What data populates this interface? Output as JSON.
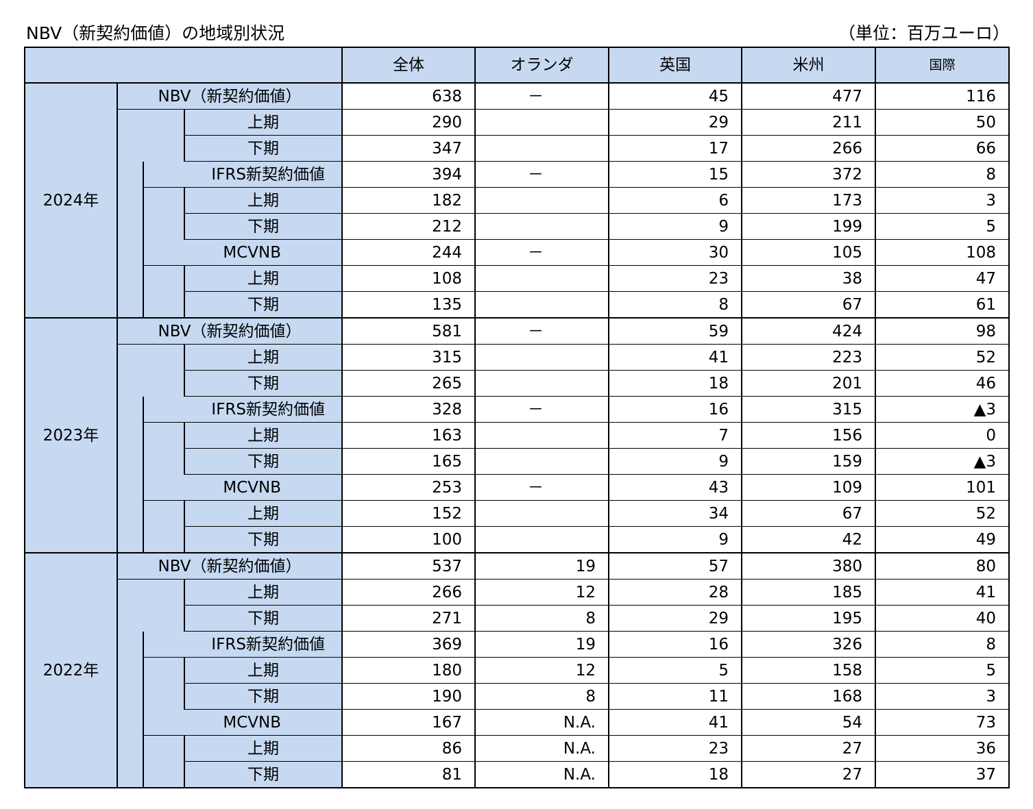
{
  "title": "NBV（新契約価値）の地域別状況",
  "unit": "（単位：百万ユーロ）",
  "columns": [
    "全体",
    "オランダ",
    "英国",
    "米州",
    "国際"
  ],
  "years": [
    {
      "year": "2024年",
      "groups": [
        {
          "label": "NBV（新契約価値）",
          "values": [
            "638",
            "－",
            "45",
            "477",
            "116"
          ],
          "rows": [
            {
              "label": "上期",
              "values": [
                "290",
                "",
                "29",
                "211",
                "50"
              ]
            },
            {
              "label": "下期",
              "values": [
                "347",
                "",
                "17",
                "266",
                "66"
              ]
            }
          ]
        },
        {
          "label": "IFRS新契約価値",
          "values": [
            "394",
            "－",
            "15",
            "372",
            "8"
          ],
          "rows": [
            {
              "label": "上期",
              "values": [
                "182",
                "",
                "6",
                "173",
                "3"
              ]
            },
            {
              "label": "下期",
              "values": [
                "212",
                "",
                "9",
                "199",
                "5"
              ]
            }
          ]
        },
        {
          "label": "MCVNB",
          "values": [
            "244",
            "－",
            "30",
            "105",
            "108"
          ],
          "rows": [
            {
              "label": "上期",
              "values": [
                "108",
                "",
                "23",
                "38",
                "47"
              ]
            },
            {
              "label": "下期",
              "values": [
                "135",
                "",
                "8",
                "67",
                "61"
              ]
            }
          ]
        }
      ]
    },
    {
      "year": "2023年",
      "groups": [
        {
          "label": "NBV（新契約価値）",
          "values": [
            "581",
            "－",
            "59",
            "424",
            "98"
          ],
          "rows": [
            {
              "label": "上期",
              "values": [
                "315",
                "",
                "41",
                "223",
                "52"
              ]
            },
            {
              "label": "下期",
              "values": [
                "265",
                "",
                "18",
                "201",
                "46"
              ]
            }
          ]
        },
        {
          "label": "IFRS新契約価値",
          "values": [
            "328",
            "－",
            "16",
            "315",
            "▲3"
          ],
          "rows": [
            {
              "label": "上期",
              "values": [
                "163",
                "",
                "7",
                "156",
                "0"
              ]
            },
            {
              "label": "下期",
              "values": [
                "165",
                "",
                "9",
                "159",
                "▲3"
              ]
            }
          ]
        },
        {
          "label": "MCVNB",
          "values": [
            "253",
            "－",
            "43",
            "109",
            "101"
          ],
          "rows": [
            {
              "label": "上期",
              "values": [
                "152",
                "",
                "34",
                "67",
                "52"
              ]
            },
            {
              "label": "下期",
              "values": [
                "100",
                "",
                "9",
                "42",
                "49"
              ]
            }
          ]
        }
      ]
    },
    {
      "year": "2022年",
      "groups": [
        {
          "label": "NBV（新契約価値）",
          "values": [
            "537",
            "19",
            "57",
            "380",
            "80"
          ],
          "rows": [
            {
              "label": "上期",
              "values": [
                "266",
                "12",
                "28",
                "185",
                "41"
              ]
            },
            {
              "label": "下期",
              "values": [
                "271",
                "8",
                "29",
                "195",
                "40"
              ]
            }
          ]
        },
        {
          "label": "IFRS新契約価値",
          "values": [
            "369",
            "19",
            "16",
            "326",
            "8"
          ],
          "rows": [
            {
              "label": "上期",
              "values": [
                "180",
                "12",
                "5",
                "158",
                "5"
              ]
            },
            {
              "label": "下期",
              "values": [
                "190",
                "8",
                "11",
                "168",
                "3"
              ]
            }
          ]
        },
        {
          "label": "MCVNB",
          "values": [
            "167",
            "N.A.",
            "41",
            "54",
            "73"
          ],
          "rows": [
            {
              "label": "上期",
              "values": [
                "86",
                "N.A.",
                "23",
                "27",
                "36"
              ]
            },
            {
              "label": "下期",
              "values": [
                "81",
                "N.A.",
                "18",
                "27",
                "37"
              ]
            }
          ]
        }
      ]
    }
  ]
}
